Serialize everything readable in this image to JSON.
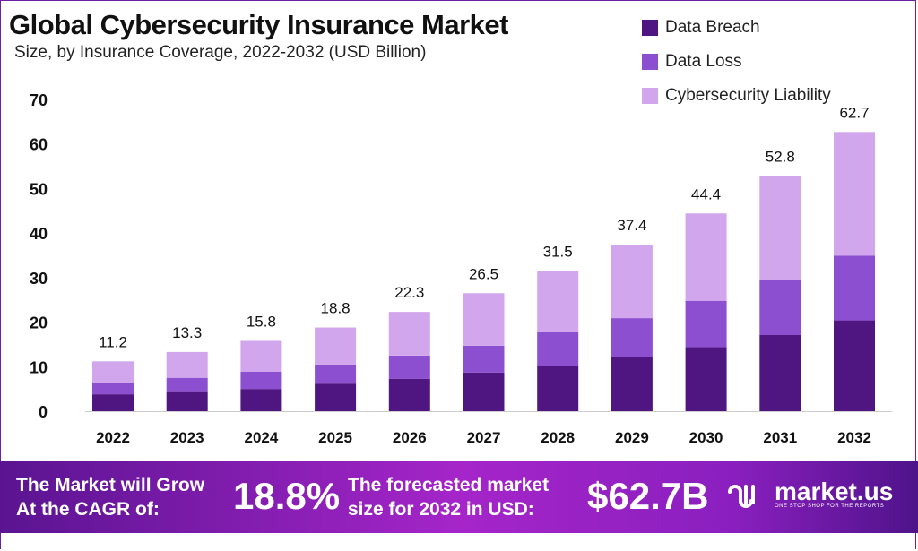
{
  "chart_data": {
    "type": "bar",
    "stacked": true,
    "title": "Global Cybersecurity Insurance Market",
    "subtitle": "Size, by Insurance Coverage, 2022-2032 (USD Billion)",
    "xlabel": "",
    "ylabel": "",
    "ylim": [
      0,
      70
    ],
    "yticks": [
      0,
      10,
      20,
      30,
      40,
      50,
      60,
      70
    ],
    "categories": [
      "2022",
      "2023",
      "2024",
      "2025",
      "2026",
      "2027",
      "2028",
      "2029",
      "2030",
      "2031",
      "2032"
    ],
    "totals": [
      11.2,
      13.3,
      15.8,
      18.8,
      22.3,
      26.5,
      31.5,
      37.4,
      44.4,
      52.8,
      62.7
    ],
    "total_labels": [
      "11.2",
      "13.3",
      "15.8",
      "18.8",
      "22.3",
      "26.5",
      "31.5",
      "37.4",
      "44.4",
      "52.8",
      "62.7"
    ],
    "series": [
      {
        "name": "Data Breach",
        "color": "#4f1682",
        "values": [
          3.8,
          4.5,
          5.0,
          6.2,
          7.3,
          8.7,
          10.2,
          12.2,
          14.4,
          17.1,
          20.4
        ]
      },
      {
        "name": "Data Loss",
        "color": "#8c4fd0",
        "values": [
          2.5,
          3.0,
          3.9,
          4.3,
          5.2,
          6.0,
          7.5,
          8.7,
          10.4,
          12.4,
          14.5
        ]
      },
      {
        "name": "Cybersecurity Liability",
        "color": "#d1a6ec",
        "values": [
          4.9,
          5.8,
          6.9,
          8.3,
          9.8,
          11.8,
          13.8,
          16.5,
          19.6,
          23.3,
          27.8
        ]
      }
    ],
    "legend_position": "top-right",
    "grid": false
  },
  "banner": {
    "cagr_text_1": "The Market will Grow",
    "cagr_text_2": "At the CAGR of:",
    "cagr_value": "18.8%",
    "forecast_text_1": "The forecasted market",
    "forecast_text_2": "size for 2032 in USD:",
    "forecast_value": "$62.7B",
    "logo_name": "market.us",
    "logo_tagline": "ONE STOP SHOP FOR THE REPORTS"
  }
}
